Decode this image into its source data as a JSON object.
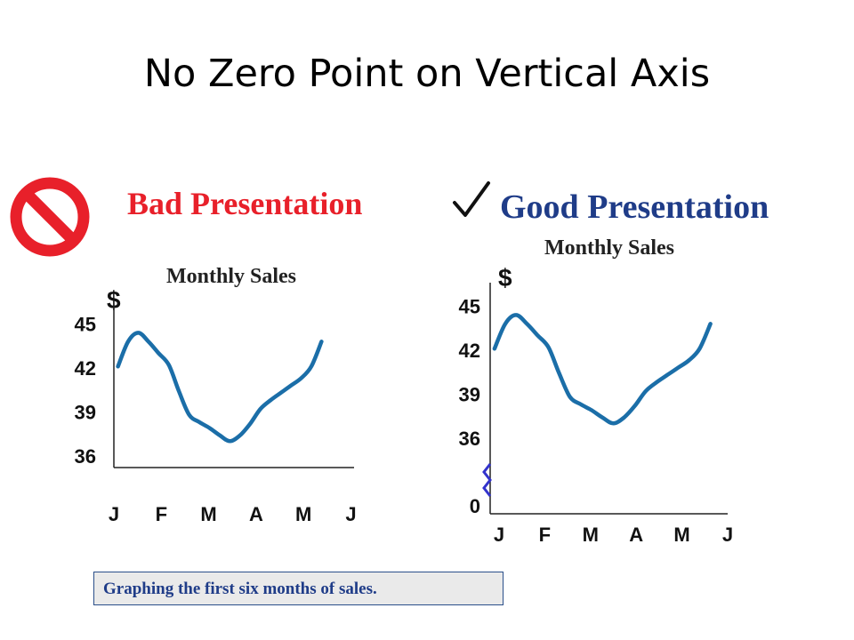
{
  "slide": {
    "title": "No Zero Point on Vertical Axis",
    "bad_label": "Bad Presentation",
    "good_label": "Good Presentation",
    "caption": "Graphing the first six months of sales."
  },
  "colors": {
    "bad": "#e8202a",
    "good": "#1f3c88",
    "line": "#1b6ea8",
    "break": "#3333cc"
  },
  "icons": {
    "bad": "no-sign-icon",
    "good": "check-icon"
  },
  "chart_data": [
    {
      "type": "line",
      "title": "Monthly Sales",
      "ylabel": "$",
      "categories": [
        "J",
        "F",
        "M",
        "A",
        "M",
        "J"
      ],
      "y_ticks": [
        "45",
        "42",
        "39",
        "36"
      ],
      "y_tick_values": [
        45,
        42,
        39,
        36
      ],
      "x": [
        0,
        0.25,
        0.5,
        0.75,
        1,
        1.25,
        1.5,
        1.75,
        2,
        2.25,
        2.5,
        2.75,
        3,
        3.25,
        3.5,
        3.75,
        4,
        4.25,
        4.5,
        4.75,
        5
      ],
      "values": [
        42.1,
        43.8,
        44.4,
        43.8,
        43.0,
        42.2,
        40.4,
        38.8,
        38.3,
        37.9,
        37.4,
        37.0,
        37.4,
        38.2,
        39.2,
        39.8,
        40.3,
        40.8,
        41.3,
        42.1,
        43.8
      ],
      "ylim": [
        35.2,
        46.0
      ],
      "xlim": [
        -0.1,
        5.8
      ],
      "axis_break": false
    },
    {
      "type": "line",
      "title": "Monthly Sales",
      "ylabel": "$",
      "categories": [
        "J",
        "F",
        "M",
        "A",
        "M",
        "J"
      ],
      "y_ticks": [
        "45",
        "42",
        "39",
        "36",
        "0"
      ],
      "y_tick_values": [
        45,
        42,
        39,
        36,
        0
      ],
      "x": [
        0,
        0.25,
        0.5,
        0.75,
        1,
        1.25,
        1.5,
        1.75,
        2,
        2.25,
        2.5,
        2.75,
        3,
        3.25,
        3.5,
        3.75,
        4,
        4.25,
        4.5,
        4.75,
        5
      ],
      "values": [
        42.1,
        43.8,
        44.4,
        43.8,
        43.0,
        42.2,
        40.4,
        38.8,
        38.3,
        37.9,
        37.4,
        37.0,
        37.4,
        38.2,
        39.2,
        39.8,
        40.3,
        40.8,
        41.3,
        42.1,
        43.8
      ],
      "ylim": [
        35.2,
        46.0
      ],
      "xlim": [
        -0.1,
        5.4
      ],
      "axis_break": true
    }
  ]
}
